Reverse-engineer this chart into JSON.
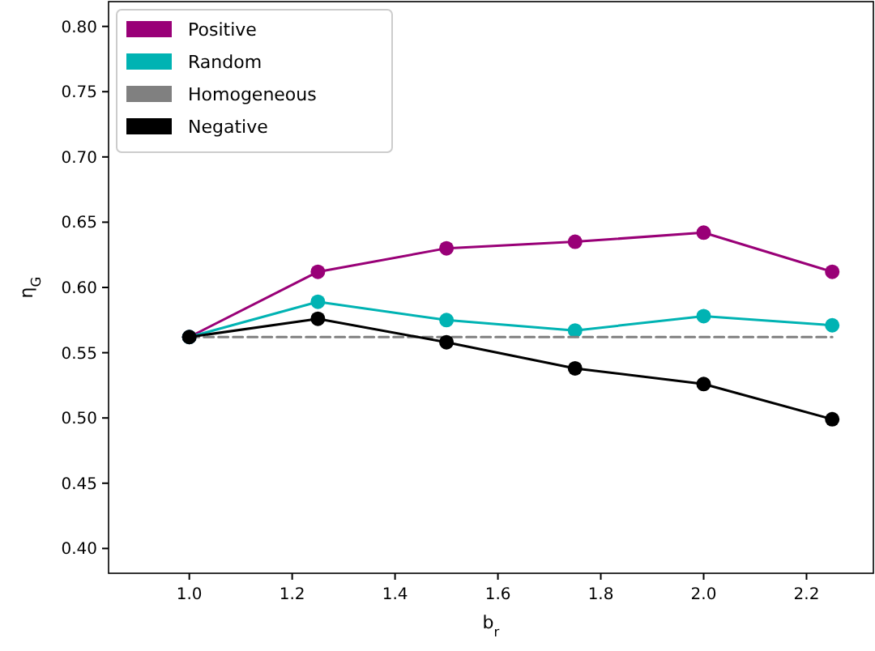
{
  "chart_data": {
    "type": "line",
    "xlabel": "b$_{r}$",
    "ylabel": "η$_{G}$",
    "x": [
      1.0,
      1.25,
      1.5,
      1.75,
      2.0,
      2.25
    ],
    "xlim": [
      0.843,
      2.33
    ],
    "ylim": [
      0.381,
      0.819
    ],
    "xticks": [
      {
        "value": 1.0,
        "label": "1.0"
      },
      1.2,
      1.4,
      1.6,
      1.8,
      {
        "value": 2.0,
        "label": "2.0"
      },
      2.2
    ],
    "yticks": [
      {
        "value": 0.4,
        "label": "0.40"
      },
      0.45,
      {
        "value": 0.5,
        "label": "0.50"
      },
      0.55,
      {
        "value": 0.6,
        "label": "0.60"
      },
      0.65,
      {
        "value": 0.7,
        "label": "0.70"
      },
      0.75,
      {
        "value": 0.8,
        "label": "0.80"
      }
    ],
    "grid": false,
    "legend": "top left",
    "marker": "circle",
    "line_style": "solid",
    "series": [
      {
        "name": "Positive",
        "color": "#990077",
        "values": [
          0.562,
          0.612,
          0.63,
          0.635,
          0.642,
          0.612
        ]
      },
      {
        "name": "Random",
        "color": "#00b3b3",
        "values": [
          0.562,
          0.589,
          0.575,
          0.567,
          0.578,
          0.571
        ]
      },
      {
        "name": "Homogeneous",
        "color": "#808080",
        "marker": "none",
        "line_style": "dashed",
        "values": [
          0.562,
          0.562,
          0.562,
          0.562,
          0.562,
          0.562
        ]
      },
      {
        "name": "Negative",
        "color": "#000000",
        "values": [
          0.562,
          0.576,
          0.558,
          0.538,
          0.526,
          0.499
        ]
      }
    ]
  }
}
